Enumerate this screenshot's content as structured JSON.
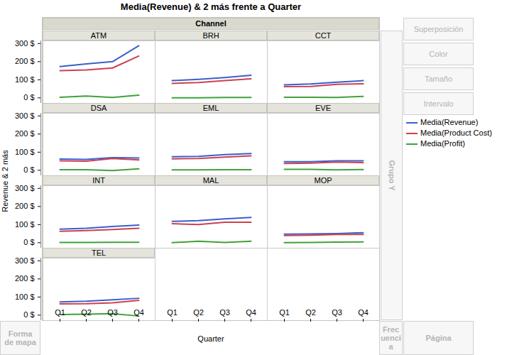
{
  "chart_data": {
    "type": "line",
    "title": "Media(Revenue) & 2 más frente a Quarter",
    "facet_title": "Channel",
    "x_label": "Quarter",
    "y_label": "Revenue & 2 más",
    "categories": [
      "Q1",
      "Q2",
      "Q3",
      "Q4"
    ],
    "ylim": [
      -30,
      315
    ],
    "yticks": [
      {
        "value": 0,
        "label": "0 $"
      },
      {
        "value": 100,
        "label": "100 $"
      },
      {
        "value": 200,
        "label": "200 $"
      },
      {
        "value": 300,
        "label": "300 $"
      }
    ],
    "grid": false,
    "legend": "right",
    "facets": [
      {
        "name": "ATM",
        "series": [
          {
            "name": "Media(Revenue)",
            "color": "#3a5fcd",
            "values": [
              173,
              188,
              200,
              288
            ]
          },
          {
            "name": "Media(Product Cost)",
            "color": "#cc4150",
            "values": [
              150,
              154,
              165,
              231
            ]
          },
          {
            "name": "Media(Profit)",
            "color": "#3fa23a",
            "values": [
              3,
              10,
              2,
              15
            ]
          }
        ]
      },
      {
        "name": "BRH",
        "series": [
          {
            "name": "Media(Revenue)",
            "color": "#3a5fcd",
            "values": [
              95,
              102,
              112,
              125
            ]
          },
          {
            "name": "Media(Product Cost)",
            "color": "#cc4150",
            "values": [
              80,
              85,
              95,
              105
            ]
          },
          {
            "name": "Media(Profit)",
            "color": "#3fa23a",
            "values": [
              0,
              0,
              2,
              2
            ]
          }
        ]
      },
      {
        "name": "CCT",
        "series": [
          {
            "name": "Media(Revenue)",
            "color": "#3a5fcd",
            "values": [
              72,
              77,
              87,
              95
            ]
          },
          {
            "name": "Media(Product Cost)",
            "color": "#cc4150",
            "values": [
              62,
              63,
              75,
              78
            ]
          },
          {
            "name": "Media(Profit)",
            "color": "#3fa23a",
            "values": [
              3,
              3,
              2,
              8
            ]
          }
        ]
      },
      {
        "name": "DSA",
        "series": [
          {
            "name": "Media(Revenue)",
            "color": "#3a5fcd",
            "values": [
              62,
              60,
              70,
              68
            ]
          },
          {
            "name": "Media(Product Cost)",
            "color": "#cc4150",
            "values": [
              52,
              50,
              65,
              57
            ]
          },
          {
            "name": "Media(Profit)",
            "color": "#3fa23a",
            "values": [
              3,
              3,
              -2,
              8
            ]
          }
        ]
      },
      {
        "name": "EML",
        "series": [
          {
            "name": "Media(Revenue)",
            "color": "#3a5fcd",
            "values": [
              75,
              77,
              87,
              93
            ]
          },
          {
            "name": "Media(Product Cost)",
            "color": "#cc4150",
            "values": [
              63,
              65,
              73,
              80
            ]
          },
          {
            "name": "Media(Profit)",
            "color": "#3fa23a",
            "values": [
              2,
              2,
              3,
              3
            ]
          }
        ]
      },
      {
        "name": "EVE",
        "series": [
          {
            "name": "Media(Revenue)",
            "color": "#3a5fcd",
            "values": [
              47,
              47,
              52,
              52
            ]
          },
          {
            "name": "Media(Product Cost)",
            "color": "#cc4150",
            "values": [
              38,
              40,
              45,
              42
            ]
          },
          {
            "name": "Media(Profit)",
            "color": "#3fa23a",
            "values": [
              5,
              5,
              2,
              4
            ]
          }
        ]
      },
      {
        "name": "INT",
        "series": [
          {
            "name": "Media(Revenue)",
            "color": "#3a5fcd",
            "values": [
              75,
              80,
              90,
              97
            ]
          },
          {
            "name": "Media(Product Cost)",
            "color": "#cc4150",
            "values": [
              63,
              67,
              73,
              80
            ]
          },
          {
            "name": "Media(Profit)",
            "color": "#3fa23a",
            "values": [
              1,
              1,
              2,
              2
            ]
          }
        ]
      },
      {
        "name": "MAL",
        "series": [
          {
            "name": "Media(Revenue)",
            "color": "#3a5fcd",
            "values": [
              118,
              122,
              132,
              140
            ]
          },
          {
            "name": "Media(Product Cost)",
            "color": "#cc4150",
            "values": [
              105,
              100,
              113,
              113
            ]
          },
          {
            "name": "Media(Profit)",
            "color": "#3fa23a",
            "values": [
              0,
              8,
              1,
              8
            ]
          }
        ]
      },
      {
        "name": "MOP",
        "series": [
          {
            "name": "Media(Revenue)",
            "color": "#3a5fcd",
            "values": [
              47,
              48,
              50,
              55
            ]
          },
          {
            "name": "Media(Product Cost)",
            "color": "#cc4150",
            "values": [
              40,
              42,
              45,
              45
            ]
          },
          {
            "name": "Media(Profit)",
            "color": "#3fa23a",
            "values": [
              0,
              1,
              3,
              4
            ]
          }
        ]
      },
      {
        "name": "TEL",
        "series": [
          {
            "name": "Media(Revenue)",
            "color": "#3a5fcd",
            "values": [
              73,
              77,
              85,
              93
            ]
          },
          {
            "name": "Media(Product Cost)",
            "color": "#cc4150",
            "values": [
              62,
              63,
              68,
              82
            ]
          },
          {
            "name": "Media(Profit)",
            "color": "#3fa23a",
            "values": [
              3,
              5,
              8,
              -5
            ]
          }
        ]
      }
    ]
  },
  "interface": {
    "buttons": [
      "Superposición",
      "Color",
      "Tamaño",
      "Intervalo"
    ],
    "group_zone": "Grupo Y",
    "map_zone": "Forma de mapa",
    "freq_zone": "Frecuencia",
    "page_zone": "Página"
  }
}
